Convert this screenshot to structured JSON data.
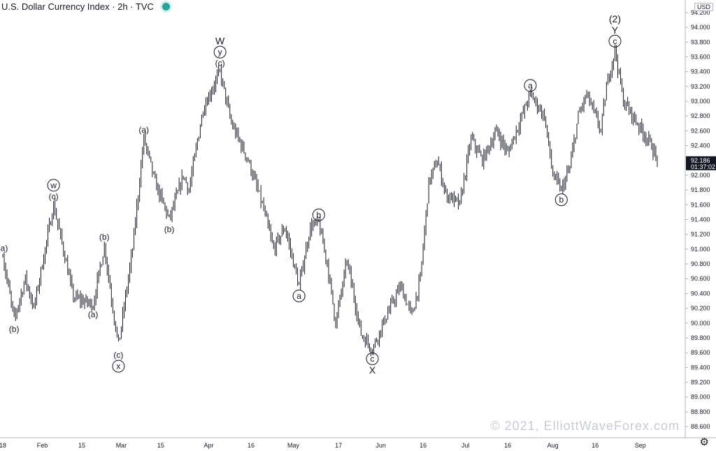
{
  "header": {
    "symbol_title": "U.S. Dollar Currency Index · 2h · TVC",
    "currency": "USD",
    "status_color": "#26a69a"
  },
  "watermark": "© 2021, ElliottWaveForex.com",
  "settings_icon": "gear-icon",
  "price_badge": {
    "value": "92.186",
    "timer": "01:37:02",
    "color": "#131722"
  },
  "chart_data": {
    "type": "line",
    "style": "bar-ohlc",
    "series_color": "#131722",
    "ylim": [
      88.45,
      94.35
    ],
    "y_ticks": [
      "94.200",
      "94.000",
      "93.800",
      "93.600",
      "93.400",
      "93.200",
      "93.000",
      "92.800",
      "92.600",
      "92.400",
      "92.200",
      "92.000",
      "91.800",
      "91.600",
      "91.400",
      "91.200",
      "91.000",
      "90.800",
      "90.600",
      "90.400",
      "90.200",
      "90.000",
      "89.800",
      "89.600",
      "89.400",
      "89.200",
      "89.000",
      "88.800",
      "88.600"
    ],
    "x_ticks": [
      "18",
      "Feb",
      "15",
      "Mar",
      "15",
      "Apr",
      "16",
      "May",
      "17",
      "Jun",
      "16",
      "Jul",
      "16",
      "Aug",
      "16",
      "Sep"
    ],
    "x_tick_dates": [
      "2021-01-18",
      "2021-02-01",
      "2021-02-15",
      "2021-03-01",
      "2021-03-15",
      "2021-04-01",
      "2021-04-16",
      "2021-05-01",
      "2021-05-17",
      "2021-06-01",
      "2021-06-16",
      "2021-07-01",
      "2021-07-16",
      "2021-08-01",
      "2021-08-16",
      "2021-09-01"
    ],
    "x_range": [
      "2021-01-18",
      "2021-09-08"
    ],
    "key_points": [
      {
        "date": "2021-01-18",
        "value": 90.9
      },
      {
        "date": "2021-01-22",
        "value": 90.05
      },
      {
        "date": "2021-01-26",
        "value": 90.6
      },
      {
        "date": "2021-01-29",
        "value": 90.2
      },
      {
        "date": "2021-02-05",
        "value": 91.6
      },
      {
        "date": "2021-02-09",
        "value": 90.9
      },
      {
        "date": "2021-02-12",
        "value": 90.35
      },
      {
        "date": "2021-02-19",
        "value": 90.25
      },
      {
        "date": "2021-02-23",
        "value": 91.05
      },
      {
        "date": "2021-02-26",
        "value": 90.2
      },
      {
        "date": "2021-02-28",
        "value": 89.7
      },
      {
        "date": "2021-03-05",
        "value": 91.0
      },
      {
        "date": "2021-03-09",
        "value": 92.5
      },
      {
        "date": "2021-03-13",
        "value": 91.9
      },
      {
        "date": "2021-03-18",
        "value": 91.4
      },
      {
        "date": "2021-03-23",
        "value": 92.0
      },
      {
        "date": "2021-03-25",
        "value": 91.8
      },
      {
        "date": "2021-03-30",
        "value": 92.9
      },
      {
        "date": "2021-04-05",
        "value": 93.4
      },
      {
        "date": "2021-04-09",
        "value": 92.7
      },
      {
        "date": "2021-04-15",
        "value": 92.2
      },
      {
        "date": "2021-04-20",
        "value": 91.6
      },
      {
        "date": "2021-04-24",
        "value": 91.0
      },
      {
        "date": "2021-04-28",
        "value": 91.3
      },
      {
        "date": "2021-05-03",
        "value": 90.5
      },
      {
        "date": "2021-05-07",
        "value": 91.3
      },
      {
        "date": "2021-05-10",
        "value": 91.35
      },
      {
        "date": "2021-05-13",
        "value": 90.8
      },
      {
        "date": "2021-05-16",
        "value": 90.0
      },
      {
        "date": "2021-05-20",
        "value": 90.85
      },
      {
        "date": "2021-05-25",
        "value": 89.85
      },
      {
        "date": "2021-05-29",
        "value": 89.65
      },
      {
        "date": "2021-06-03",
        "value": 90.1
      },
      {
        "date": "2021-06-08",
        "value": 90.5
      },
      {
        "date": "2021-06-12",
        "value": 90.1
      },
      {
        "date": "2021-06-15",
        "value": 90.6
      },
      {
        "date": "2021-06-18",
        "value": 91.9
      },
      {
        "date": "2021-06-21",
        "value": 92.2
      },
      {
        "date": "2021-06-24",
        "value": 91.75
      },
      {
        "date": "2021-06-29",
        "value": 91.6
      },
      {
        "date": "2021-07-03",
        "value": 92.5
      },
      {
        "date": "2021-07-07",
        "value": 92.2
      },
      {
        "date": "2021-07-12",
        "value": 92.6
      },
      {
        "date": "2021-07-16",
        "value": 92.3
      },
      {
        "date": "2021-07-21",
        "value": 92.8
      },
      {
        "date": "2021-07-24",
        "value": 93.1
      },
      {
        "date": "2021-07-29",
        "value": 92.8
      },
      {
        "date": "2021-08-01",
        "value": 92.0
      },
      {
        "date": "2021-08-04",
        "value": 91.8
      },
      {
        "date": "2021-08-07",
        "value": 92.1
      },
      {
        "date": "2021-08-10",
        "value": 92.8
      },
      {
        "date": "2021-08-13",
        "value": 93.1
      },
      {
        "date": "2021-08-16",
        "value": 92.8
      },
      {
        "date": "2021-08-18",
        "value": 92.6
      },
      {
        "date": "2021-08-20",
        "value": 93.2
      },
      {
        "date": "2021-08-23",
        "value": 93.7
      },
      {
        "date": "2021-08-26",
        "value": 93.0
      },
      {
        "date": "2021-08-31",
        "value": 92.7
      },
      {
        "date": "2021-09-05",
        "value": 92.4
      },
      {
        "date": "2021-09-07",
        "value": 92.19
      }
    ],
    "annotations": [
      {
        "date": "2021-01-18",
        "value": 90.9,
        "pos": "above",
        "lines": [
          {
            "t": "(a)",
            "c": false
          }
        ]
      },
      {
        "date": "2021-01-22",
        "value": 90.05,
        "pos": "below",
        "lines": [
          {
            "t": "(b)",
            "c": false
          }
        ]
      },
      {
        "date": "2021-02-05",
        "value": 91.6,
        "pos": "above",
        "lines": [
          {
            "t": "w",
            "c": true
          },
          {
            "t": "(c)",
            "c": false
          }
        ]
      },
      {
        "date": "2021-02-19",
        "value": 90.25,
        "pos": "below",
        "lines": [
          {
            "t": "(a)",
            "c": false
          }
        ]
      },
      {
        "date": "2021-02-23",
        "value": 91.05,
        "pos": "above",
        "lines": [
          {
            "t": "(b)",
            "c": false
          }
        ]
      },
      {
        "date": "2021-02-28",
        "value": 89.7,
        "pos": "below",
        "lines": [
          {
            "t": "(c)",
            "c": false
          },
          {
            "t": "x",
            "c": true
          }
        ]
      },
      {
        "date": "2021-03-09",
        "value": 92.5,
        "pos": "above",
        "lines": [
          {
            "t": "(a)",
            "c": false
          }
        ]
      },
      {
        "date": "2021-03-18",
        "value": 91.4,
        "pos": "below",
        "lines": [
          {
            "t": "(b)",
            "c": false
          }
        ]
      },
      {
        "date": "2021-04-05",
        "value": 93.4,
        "pos": "above",
        "lines": [
          {
            "t": "W",
            "c": false
          },
          {
            "t": "y",
            "c": true
          },
          {
            "t": "(c)",
            "c": false
          }
        ]
      },
      {
        "date": "2021-05-03",
        "value": 90.5,
        "pos": "below",
        "lines": [
          {
            "t": "a",
            "c": true
          }
        ]
      },
      {
        "date": "2021-05-10",
        "value": 91.35,
        "pos": "above",
        "lines": [
          {
            "t": "b",
            "c": true
          }
        ]
      },
      {
        "date": "2021-05-29",
        "value": 89.65,
        "pos": "below",
        "lines": [
          {
            "t": "c",
            "c": true
          },
          {
            "t": "X",
            "c": false
          }
        ]
      },
      {
        "date": "2021-07-24",
        "value": 93.1,
        "pos": "above",
        "lines": [
          {
            "t": "a",
            "c": true
          }
        ]
      },
      {
        "date": "2021-08-04",
        "value": 91.8,
        "pos": "below",
        "lines": [
          {
            "t": "b",
            "c": true
          }
        ]
      },
      {
        "date": "2021-08-23",
        "value": 93.7,
        "pos": "above",
        "lines": [
          {
            "t": "(2)",
            "c": false
          },
          {
            "t": "Y",
            "c": false
          },
          {
            "t": "c",
            "c": true
          }
        ]
      }
    ]
  }
}
